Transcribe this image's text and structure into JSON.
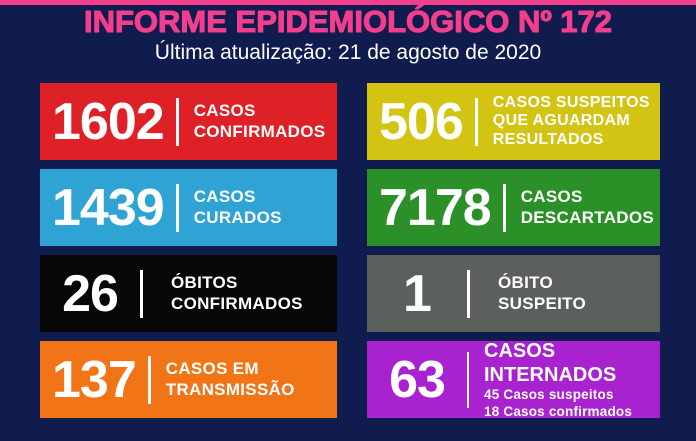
{
  "header": {
    "title": "INFORME EPIDEMIOLÓGICO Nº 172",
    "subtitle": "Última atualização: 21 de agosto de 2020"
  },
  "colors": {
    "background": "#101b4e",
    "accent_pink": "#f23e8d",
    "top_strip": "#f23e8d",
    "text_white": "#ffffff"
  },
  "cards": [
    {
      "id": "casos-confirmados",
      "value": "1602",
      "label_lines": [
        "CASOS",
        "CONFIRMADOS"
      ],
      "color": "#de2127"
    },
    {
      "id": "casos-suspeitos-aguardam",
      "value": "506",
      "label_lines": [
        "CASOS SUSPEITOS",
        "QUE AGUARDAM",
        "RESULTADOS"
      ],
      "color": "#d3c313"
    },
    {
      "id": "casos-curados",
      "value": "1439",
      "label_lines": [
        "CASOS",
        "CURADOS"
      ],
      "color": "#2fa3d3"
    },
    {
      "id": "casos-descartados",
      "value": "7178",
      "label_lines": [
        "CASOS",
        "DESCARTADOS"
      ],
      "color": "#2b9027"
    },
    {
      "id": "obitos-confirmados",
      "value": "26",
      "label_lines": [
        "ÓBITOS",
        "CONFIRMADOS"
      ],
      "color": "#070707"
    },
    {
      "id": "obito-suspeito",
      "value": "1",
      "label_lines": [
        "ÓBITO",
        "SUSPEITO"
      ],
      "color": "#5b605d"
    },
    {
      "id": "casos-em-transmissao",
      "value": "137",
      "label_lines": [
        "CASOS EM",
        "TRANSMISSÃO"
      ],
      "color": "#f17517"
    },
    {
      "id": "casos-internados",
      "value": "63",
      "label_main": "CASOS INTERNADOS",
      "sub_lines": [
        "45 Casos suspeitos",
        "18 Casos confirmados"
      ],
      "color": "#a922d0"
    }
  ]
}
